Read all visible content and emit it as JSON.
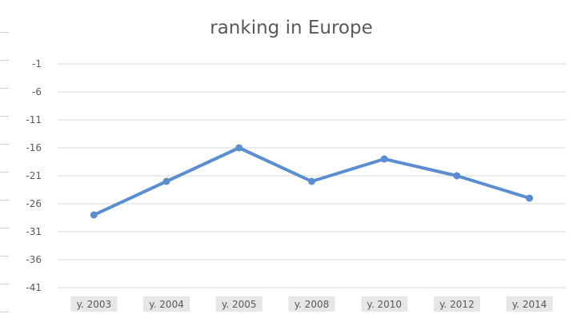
{
  "chart_data": {
    "type": "line",
    "title": "ranking in Europe",
    "categories": [
      "y. 2003",
      "y. 2004",
      "y. 2005",
      "y. 2008",
      "y. 2010",
      "y. 2012",
      "y. 2014"
    ],
    "series": [
      {
        "values": [
          -28,
          -22,
          -16,
          -22,
          -18,
          -21,
          -25
        ]
      }
    ],
    "y_ticks": [
      "-1",
      "-6",
      "-11",
      "-16",
      "-21",
      "-26",
      "-31",
      "-36",
      "-41"
    ],
    "ylim": [
      -41,
      -1
    ],
    "grid": true,
    "legend": "none",
    "colors": {
      "line": "#5b8ed0",
      "grid": "#d9d9d9",
      "text": "#595959"
    }
  }
}
